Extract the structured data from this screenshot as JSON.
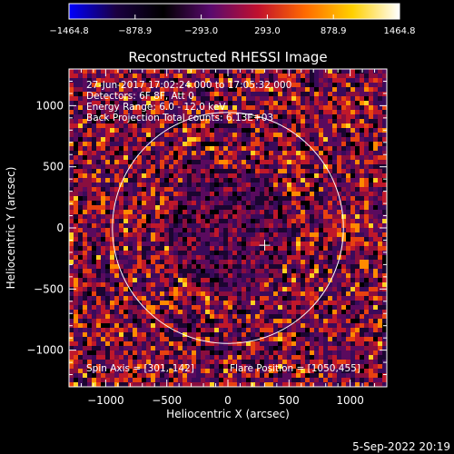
{
  "chart_data": {
    "type": "heatmap",
    "title": "Reconstructed RHESSI Image",
    "xlabel": "Heliocentric X (arcsec)",
    "ylabel": "Heliocentric Y (arcsec)",
    "xlim": [
      -1300,
      1300
    ],
    "ylim": [
      -1300,
      1300
    ],
    "x_ticks": [
      -1000,
      -500,
      0,
      500,
      1000
    ],
    "y_ticks": [
      -1000,
      -500,
      0,
      500,
      1000
    ],
    "x_tick_labels": [
      "−1000",
      "−500",
      "0",
      "500",
      "1000"
    ],
    "y_tick_labels": [
      "−1000",
      "−500",
      "0",
      "500",
      "1000"
    ],
    "colorbar": {
      "min": -1464.8,
      "max": 1464.8,
      "ticks": [
        -1464.8,
        -878.9,
        -293.0,
        293.0,
        878.9,
        1464.8
      ],
      "tick_labels": [
        "−1464.8",
        "−878.9",
        "−293.0",
        "293.0",
        "878.9",
        "1464.8"
      ],
      "colors": [
        "#0000ff",
        "#1a0040",
        "#000000",
        "#5a0a6e",
        "#c0102e",
        "#ff6a00",
        "#ffd000",
        "#ffffff"
      ]
    },
    "annotations": {
      "time": "27-Jun-2017 17:02:24.000 to 17:05:32.000",
      "detectors": "Detectors: 6F 8F, Att 0",
      "energy": "Energy Range: 6.0 - 12.0 keV",
      "method": "Back Projection    Total counts: 6.13E+03",
      "spin_axis": "Spin Axis = [301,-142]",
      "flare_position": "Flare Position = [1050,455]"
    },
    "solar_limb_radius_arcsec": 945,
    "marker": {
      "x": 301,
      "y": -142,
      "symbol": "+"
    },
    "grid": false
  },
  "footer": {
    "date": "5-Sep-2022 20:19"
  }
}
